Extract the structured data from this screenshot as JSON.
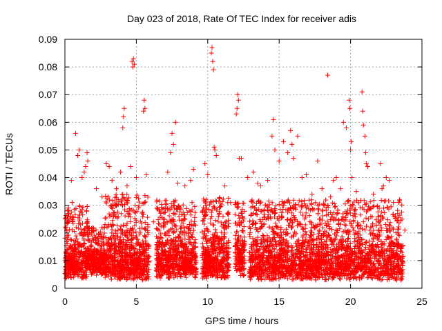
{
  "chart_data": {
    "type": "scatter",
    "title": "Day 023 of 2018, Rate Of TEC Index for receiver adis",
    "xlabel": "GPS time / hours",
    "ylabel": "ROTI / TECUs",
    "xlim": [
      0,
      25
    ],
    "ylim": [
      0,
      0.09
    ],
    "xticks": [
      0,
      5,
      10,
      15,
      20,
      25
    ],
    "yticks": [
      0,
      0.01,
      0.02,
      0.03,
      0.04,
      0.05,
      0.06,
      0.07,
      0.08,
      0.09
    ],
    "xtick_labels": [
      "0",
      "5",
      "10",
      "15",
      "20",
      "25"
    ],
    "ytick_labels": [
      "0",
      "0.01",
      "0.02",
      "0.03",
      "0.04",
      "0.05",
      "0.06",
      "0.07",
      "0.08",
      "0.09"
    ],
    "grid": true,
    "marker": "+",
    "color": "#ff0000",
    "series": [
      {
        "name": "ROTI",
        "points": [
          [
            0.25,
            0.028
          ],
          [
            0.45,
            0.039
          ],
          [
            0.5,
            0.031
          ],
          [
            0.75,
            0.056
          ],
          [
            0.9,
            0.048
          ],
          [
            1.0,
            0.05
          ],
          [
            1.2,
            0.04
          ],
          [
            1.35,
            0.042
          ],
          [
            1.45,
            0.044
          ],
          [
            1.55,
            0.049
          ],
          [
            1.6,
            0.046
          ],
          [
            2.2,
            0.036
          ],
          [
            2.6,
            0.033
          ],
          [
            2.9,
            0.045
          ],
          [
            3.1,
            0.044
          ],
          [
            3.3,
            0.039
          ],
          [
            3.6,
            0.036
          ],
          [
            3.9,
            0.042
          ],
          [
            4.05,
            0.058
          ],
          [
            4.1,
            0.062
          ],
          [
            4.15,
            0.065
          ],
          [
            4.35,
            0.037
          ],
          [
            4.6,
            0.044
          ],
          [
            4.7,
            0.082
          ],
          [
            4.75,
            0.08
          ],
          [
            4.8,
            0.083
          ],
          [
            4.85,
            0.081
          ],
          [
            5.0,
            0.04
          ],
          [
            5.5,
            0.064
          ],
          [
            5.55,
            0.068
          ],
          [
            5.6,
            0.065
          ],
          [
            5.7,
            0.041
          ],
          [
            6.2,
            0.024
          ],
          [
            6.6,
            0.028
          ],
          [
            7.2,
            0.042
          ],
          [
            7.4,
            0.049
          ],
          [
            7.5,
            0.056
          ],
          [
            7.6,
            0.052
          ],
          [
            7.75,
            0.06
          ],
          [
            7.9,
            0.038
          ],
          [
            8.4,
            0.037
          ],
          [
            8.8,
            0.039
          ],
          [
            8.9,
            0.031
          ],
          [
            9.0,
            0.043
          ],
          [
            9.8,
            0.045
          ],
          [
            10.0,
            0.041
          ],
          [
            10.25,
            0.085
          ],
          [
            10.3,
            0.087
          ],
          [
            10.35,
            0.082
          ],
          [
            10.4,
            0.079
          ],
          [
            10.45,
            0.051
          ],
          [
            10.5,
            0.05
          ],
          [
            10.6,
            0.048
          ],
          [
            11.2,
            0.037
          ],
          [
            11.6,
            0.031
          ],
          [
            12.0,
            0.063
          ],
          [
            12.05,
            0.065
          ],
          [
            12.1,
            0.07
          ],
          [
            12.15,
            0.068
          ],
          [
            12.2,
            0.047
          ],
          [
            12.35,
            0.047
          ],
          [
            12.8,
            0.04
          ],
          [
            13.2,
            0.042
          ],
          [
            13.5,
            0.038
          ],
          [
            13.7,
            0.037
          ],
          [
            14.2,
            0.039
          ],
          [
            14.5,
            0.055
          ],
          [
            14.6,
            0.061
          ],
          [
            14.7,
            0.05
          ],
          [
            15.0,
            0.046
          ],
          [
            15.3,
            0.053
          ],
          [
            15.6,
            0.049
          ],
          [
            15.8,
            0.057
          ],
          [
            15.9,
            0.052
          ],
          [
            16.0,
            0.047
          ],
          [
            16.3,
            0.055
          ],
          [
            16.6,
            0.04
          ],
          [
            16.9,
            0.041
          ],
          [
            17.3,
            0.034
          ],
          [
            17.7,
            0.046
          ],
          [
            18.0,
            0.036
          ],
          [
            18.4,
            0.077
          ],
          [
            18.6,
            0.033
          ],
          [
            18.8,
            0.039
          ],
          [
            19.0,
            0.04
          ],
          [
            19.3,
            0.036
          ],
          [
            19.5,
            0.06
          ],
          [
            19.7,
            0.058
          ],
          [
            19.9,
            0.068
          ],
          [
            19.95,
            0.065
          ],
          [
            20.0,
            0.05
          ],
          [
            20.05,
            0.053
          ],
          [
            20.1,
            0.04
          ],
          [
            20.4,
            0.035
          ],
          [
            20.8,
            0.071
          ],
          [
            20.85,
            0.064
          ],
          [
            20.9,
            0.059
          ],
          [
            21.0,
            0.055
          ],
          [
            21.05,
            0.049
          ],
          [
            21.1,
            0.045
          ],
          [
            21.2,
            0.044
          ],
          [
            21.6,
            0.034
          ],
          [
            22.1,
            0.045
          ],
          [
            22.2,
            0.036
          ],
          [
            22.3,
            0.037
          ],
          [
            22.5,
            0.04
          ],
          [
            22.7,
            0.039
          ],
          [
            23.0,
            0.031
          ],
          [
            23.3,
            0.027
          ],
          [
            23.6,
            0.025
          ],
          [
            23.8,
            0.021
          ]
        ],
        "dense_bands": [
          {
            "x": [
              0.0,
              1.6
            ],
            "y_low": 0.006,
            "y_mid": 0.014,
            "y_high": 0.03
          },
          {
            "x": [
              1.6,
              2.8
            ],
            "y_low": 0.007,
            "y_mid": 0.013,
            "y_high": 0.022
          },
          {
            "x": [
              2.8,
              5.9
            ],
            "y_low": 0.005,
            "y_mid": 0.015,
            "y_high": 0.034
          },
          {
            "x": [
              6.4,
              8.3
            ],
            "y_low": 0.006,
            "y_mid": 0.015,
            "y_high": 0.032
          },
          {
            "x": [
              8.3,
              9.2
            ],
            "y_low": 0.006,
            "y_mid": 0.014,
            "y_high": 0.03
          },
          {
            "x": [
              9.6,
              11.5
            ],
            "y_low": 0.006,
            "y_mid": 0.016,
            "y_high": 0.033
          },
          {
            "x": [
              11.9,
              12.6
            ],
            "y_low": 0.007,
            "y_mid": 0.017,
            "y_high": 0.031
          },
          {
            "x": [
              12.9,
              23.7
            ],
            "y_low": 0.005,
            "y_mid": 0.015,
            "y_high": 0.032
          }
        ]
      }
    ]
  }
}
